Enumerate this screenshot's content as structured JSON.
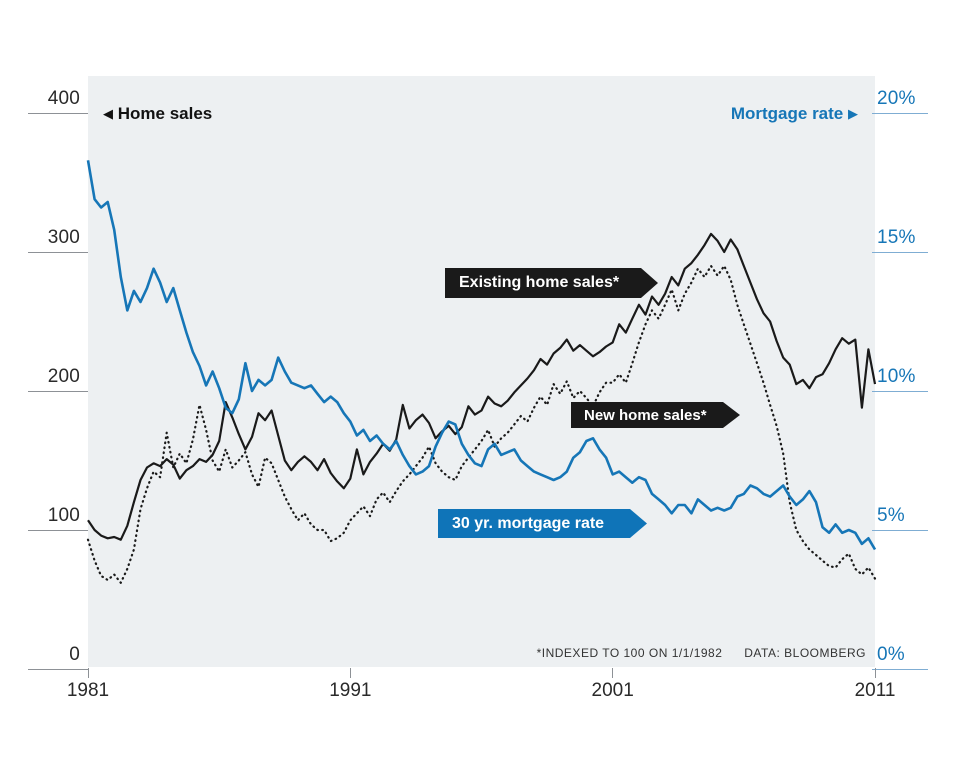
{
  "header": {
    "left_arrow": "◀",
    "left_label": "Home sales",
    "right_label": "Mortgage rate",
    "right_arrow": "▶"
  },
  "series_tags": {
    "existing": "Existing home sales*",
    "new": "New home sales*",
    "mortgage": "30 yr. mortgage rate"
  },
  "footnote": {
    "index_note": "*INDEXED TO 100 ON 1/1/1982",
    "source": "DATA: BLOOMBERG"
  },
  "colors": {
    "blue": "#1676b7",
    "blue_box": "#0f74b8",
    "light_blue_tick": "#7fadd3",
    "gray_tick": "#8d9196",
    "near_black": "#1a1a1a",
    "plot_bg": "#edf0f2"
  },
  "axes": {
    "left": {
      "tick_labels": [
        "400",
        "300",
        "200",
        "100",
        "0"
      ],
      "tick_values": [
        400,
        300,
        200,
        100,
        0
      ]
    },
    "right": {
      "tick_labels": [
        "20%",
        "15%",
        "10%",
        "5%",
        "0%"
      ],
      "tick_values": [
        20,
        15,
        10,
        5,
        0
      ]
    },
    "x": {
      "tick_labels": [
        "1981",
        "1991",
        "2001",
        "2011"
      ],
      "tick_values": [
        1981,
        1991,
        2001,
        2011
      ]
    }
  },
  "chart_data": {
    "type": "line",
    "title": "",
    "x_start": 1981,
    "x_step_years": 0.25,
    "x_range": [
      1981,
      2011
    ],
    "left_axis": {
      "label": "Home sales (indexed to 100 on 1/1/1982)",
      "range": [
        0,
        400
      ]
    },
    "right_axis": {
      "label": "30 yr. mortgage rate (%)",
      "range": [
        0,
        20
      ]
    },
    "grid": "ticks-only",
    "legend_position": "inline-labels",
    "series": [
      {
        "name": "Existing home sales*",
        "axis": "left",
        "line_style": "solid",
        "color": "#1a1a1a",
        "values": [
          107,
          100,
          96,
          94,
          95,
          93,
          103,
          120,
          136,
          145,
          148,
          146,
          151,
          147,
          137,
          143,
          146,
          151,
          149,
          154,
          164,
          192,
          181,
          169,
          158,
          167,
          184,
          179,
          186,
          168,
          150,
          143,
          149,
          153,
          149,
          143,
          151,
          141,
          135,
          130,
          137,
          158,
          140,
          149,
          155,
          162,
          157,
          165,
          190,
          173,
          179,
          183,
          177,
          166,
          171,
          175,
          169,
          174,
          189,
          183,
          186,
          196,
          191,
          189,
          193,
          199,
          204,
          209,
          215,
          223,
          219,
          227,
          231,
          237,
          229,
          233,
          229,
          225,
          228,
          232,
          235,
          248,
          242,
          252,
          262,
          255,
          268,
          262,
          270,
          282,
          276,
          288,
          292,
          298,
          305,
          313,
          308,
          300,
          309,
          302,
          290,
          278,
          266,
          256,
          250,
          236,
          224,
          219,
          205,
          208,
          202,
          210,
          212,
          220,
          230,
          238,
          234,
          237,
          188,
          230,
          205
        ]
      },
      {
        "name": "New home sales*",
        "axis": "left",
        "line_style": "dotted",
        "color": "#1a1a1a",
        "values": [
          93,
          78,
          67,
          64,
          68,
          62,
          72,
          86,
          115,
          130,
          142,
          138,
          170,
          145,
          155,
          148,
          165,
          190,
          172,
          150,
          142,
          158,
          145,
          150,
          156,
          140,
          131,
          152,
          148,
          136,
          124,
          115,
          107,
          112,
          104,
          100,
          100,
          92,
          94,
          98,
          107,
          112,
          117,
          110,
          122,
          127,
          120,
          128,
          135,
          140,
          146,
          152,
          160,
          148,
          142,
          138,
          136,
          146,
          152,
          158,
          164,
          172,
          160,
          166,
          170,
          176,
          182,
          178,
          188,
          196,
          190,
          205,
          198,
          207,
          195,
          200,
          195,
          189,
          199,
          206,
          206,
          212,
          206,
          220,
          235,
          248,
          258,
          252,
          262,
          273,
          258,
          270,
          278,
          288,
          282,
          290,
          283,
          290,
          280,
          262,
          248,
          234,
          220,
          206,
          190,
          175,
          155,
          120,
          100,
          92,
          86,
          82,
          78,
          74,
          73,
          79,
          83,
          72,
          68,
          73,
          65
        ]
      },
      {
        "name": "30 yr. mortgage rate",
        "axis": "right",
        "line_style": "solid",
        "color": "#1676b7",
        "values": [
          18.3,
          16.9,
          16.6,
          16.8,
          15.8,
          14.1,
          12.9,
          13.6,
          13.2,
          13.7,
          14.4,
          13.9,
          13.2,
          13.7,
          12.9,
          12.1,
          11.4,
          10.9,
          10.2,
          10.7,
          10.1,
          9.4,
          9.2,
          9.7,
          11.0,
          10.0,
          10.4,
          10.2,
          10.4,
          11.2,
          10.7,
          10.3,
          10.2,
          10.1,
          10.2,
          9.9,
          9.6,
          9.8,
          9.6,
          9.2,
          8.9,
          8.4,
          8.6,
          8.2,
          8.4,
          8.1,
          7.9,
          8.2,
          7.7,
          7.3,
          7.0,
          7.1,
          7.3,
          8.0,
          8.5,
          8.9,
          8.8,
          8.1,
          7.7,
          7.4,
          7.3,
          7.9,
          8.1,
          7.7,
          7.8,
          7.9,
          7.5,
          7.3,
          7.1,
          7.0,
          6.9,
          6.8,
          6.9,
          7.1,
          7.6,
          7.8,
          8.2,
          8.3,
          7.9,
          7.6,
          7.0,
          7.1,
          6.9,
          6.7,
          6.9,
          6.8,
          6.3,
          6.1,
          5.9,
          5.6,
          5.9,
          5.9,
          5.6,
          6.1,
          5.9,
          5.7,
          5.8,
          5.7,
          5.8,
          6.2,
          6.3,
          6.6,
          6.5,
          6.3,
          6.2,
          6.4,
          6.6,
          6.2,
          5.9,
          6.1,
          6.4,
          6.0,
          5.1,
          4.9,
          5.2,
          4.9,
          5.0,
          4.9,
          4.5,
          4.7,
          4.3
        ]
      }
    ]
  }
}
